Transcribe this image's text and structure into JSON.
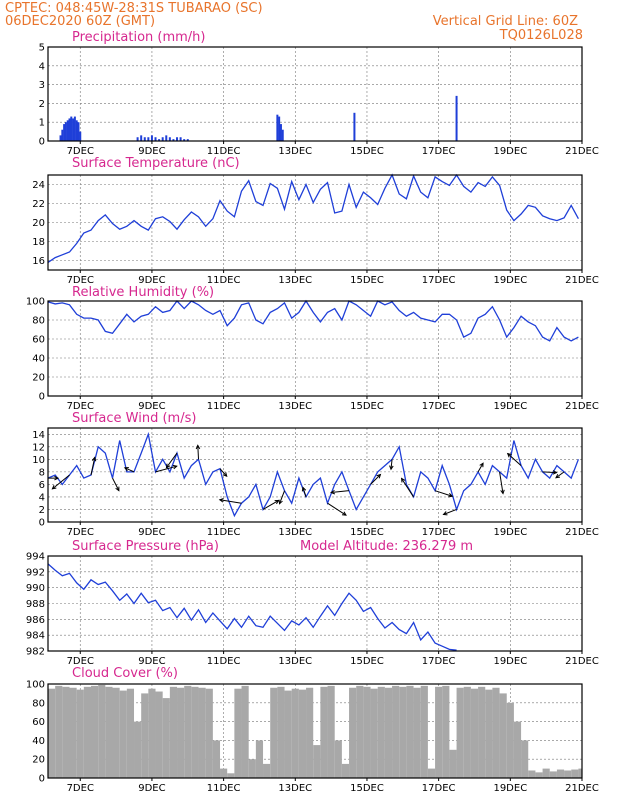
{
  "header": {
    "line1": "CPTEC:   048:45W-28:31S  TUBARAO (SC)",
    "line2": "06DEC2020 60Z (GMT)",
    "grid_note": "Vertical Grid Line: 60Z",
    "code": "TQ0126L028"
  },
  "x_axis": {
    "ticks": [
      {
        "day": 7,
        "label": "7DEC"
      },
      {
        "day": 9,
        "label": "9DEC"
      },
      {
        "day": 11,
        "label": "11DEC"
      },
      {
        "day": 13,
        "label": "13DEC"
      },
      {
        "day": 15,
        "label": "15DEC"
      },
      {
        "day": 17,
        "label": "17DEC"
      },
      {
        "day": 19,
        "label": "19DEC"
      },
      {
        "day": 21,
        "label": "21DEC"
      }
    ],
    "start_day": 6.1,
    "end_day": 21
  },
  "model_altitude": "Model Altitude: 236.279 m",
  "chart_data": [
    {
      "type": "bar",
      "title": "Precipitation (mm/h)",
      "ylim": [
        0,
        5
      ],
      "yticks": [
        0,
        1,
        2,
        3,
        4,
        5
      ],
      "x": [
        6.45,
        6.5,
        6.55,
        6.6,
        6.65,
        6.7,
        6.75,
        6.8,
        6.85,
        6.9,
        6.95,
        7.0,
        8.6,
        8.7,
        8.8,
        8.9,
        9.0,
        9.1,
        9.2,
        9.3,
        9.4,
        9.5,
        9.6,
        9.7,
        9.8,
        9.9,
        10.0,
        12.5,
        12.55,
        12.6,
        12.65,
        14.65,
        17.5
      ],
      "values": [
        0.3,
        0.6,
        0.9,
        1.0,
        1.1,
        1.2,
        1.3,
        1.2,
        1.3,
        1.1,
        1.0,
        0.5,
        0.2,
        0.3,
        0.2,
        0.2,
        0.3,
        0.2,
        0.1,
        0.2,
        0.3,
        0.2,
        0.1,
        0.2,
        0.2,
        0.1,
        0.1,
        1.4,
        1.3,
        0.9,
        0.6,
        1.5,
        2.4
      ]
    },
    {
      "type": "line",
      "title": "Surface Temperature (nC)",
      "ylim": [
        15,
        25
      ],
      "yticks": [
        16,
        18,
        20,
        22,
        24
      ],
      "x": [
        6.1,
        6.3,
        6.5,
        6.7,
        6.9,
        7.1,
        7.3,
        7.5,
        7.7,
        7.9,
        8.1,
        8.3,
        8.5,
        8.7,
        8.9,
        9.1,
        9.3,
        9.5,
        9.7,
        9.9,
        10.1,
        10.3,
        10.5,
        10.7,
        10.9,
        11.1,
        11.3,
        11.5,
        11.7,
        11.9,
        12.1,
        12.3,
        12.5,
        12.7,
        12.9,
        13.1,
        13.3,
        13.5,
        13.7,
        13.9,
        14.1,
        14.3,
        14.5,
        14.7,
        14.9,
        15.1,
        15.3,
        15.5,
        15.7,
        15.9,
        16.1,
        16.3,
        16.5,
        16.7,
        16.9,
        17.1,
        17.3,
        17.5,
        17.7,
        17.9,
        18.1,
        18.3,
        18.5,
        18.7,
        18.9,
        19.1,
        19.3,
        19.5,
        19.7,
        19.9,
        20.1,
        20.3,
        20.5,
        20.7,
        20.9
      ],
      "values": [
        15.8,
        16.3,
        16.6,
        16.9,
        17.8,
        18.9,
        19.2,
        20.2,
        20.8,
        19.9,
        19.3,
        19.6,
        20.2,
        19.6,
        19.2,
        20.4,
        20.6,
        20.1,
        19.3,
        20.3,
        21.1,
        20.6,
        19.6,
        20.4,
        22.3,
        21.2,
        20.6,
        23.3,
        24.4,
        22.2,
        21.8,
        24.1,
        23.6,
        21.4,
        24.3,
        22.4,
        24.0,
        22.1,
        23.5,
        24.2,
        21.0,
        21.2,
        24.0,
        21.6,
        23.2,
        22.6,
        21.9,
        23.6,
        25.0,
        23.0,
        22.5,
        24.9,
        23.2,
        22.6,
        24.8,
        24.3,
        23.9,
        25.0,
        23.8,
        23.2,
        24.2,
        23.8,
        24.8,
        23.9,
        21.3,
        20.2,
        20.9,
        21.8,
        21.6,
        20.7,
        20.4,
        20.2,
        20.5,
        21.8,
        20.4
      ]
    },
    {
      "type": "line",
      "title": "Relative Humidity (%)",
      "ylim": [
        0,
        100
      ],
      "yticks": [
        0,
        20,
        40,
        60,
        80,
        100
      ],
      "x": [
        6.1,
        6.3,
        6.5,
        6.7,
        6.9,
        7.1,
        7.3,
        7.5,
        7.7,
        7.9,
        8.1,
        8.3,
        8.5,
        8.7,
        8.9,
        9.1,
        9.3,
        9.5,
        9.7,
        9.9,
        10.1,
        10.3,
        10.5,
        10.7,
        10.9,
        11.1,
        11.3,
        11.5,
        11.7,
        11.9,
        12.1,
        12.3,
        12.5,
        12.7,
        12.9,
        13.1,
        13.3,
        13.5,
        13.7,
        13.9,
        14.1,
        14.3,
        14.5,
        14.7,
        14.9,
        15.1,
        15.3,
        15.5,
        15.7,
        15.9,
        16.1,
        16.3,
        16.5,
        16.7,
        16.9,
        17.1,
        17.3,
        17.5,
        17.7,
        17.9,
        18.1,
        18.3,
        18.5,
        18.7,
        18.9,
        19.1,
        19.3,
        19.5,
        19.7,
        19.9,
        20.1,
        20.3,
        20.5,
        20.7,
        20.9
      ],
      "values": [
        99,
        97,
        98,
        96,
        86,
        82,
        82,
        80,
        68,
        66,
        76,
        86,
        78,
        84,
        86,
        94,
        88,
        90,
        100,
        92,
        100,
        96,
        90,
        86,
        90,
        74,
        82,
        96,
        98,
        80,
        76,
        88,
        92,
        98,
        82,
        88,
        100,
        88,
        78,
        88,
        92,
        80,
        100,
        96,
        90,
        84,
        100,
        96,
        99,
        90,
        84,
        88,
        82,
        80,
        78,
        86,
        86,
        80,
        62,
        66,
        82,
        86,
        94,
        80,
        62,
        72,
        84,
        78,
        74,
        62,
        58,
        72,
        62,
        58,
        62
      ]
    },
    {
      "type": "line",
      "title": "Surface Wind (m/s)",
      "ylim": [
        0,
        15
      ],
      "yticks": [
        0,
        2,
        4,
        6,
        8,
        10,
        12,
        14
      ],
      "x": [
        6.1,
        6.3,
        6.5,
        6.7,
        6.9,
        7.1,
        7.3,
        7.5,
        7.7,
        7.9,
        8.1,
        8.3,
        8.5,
        8.7,
        8.9,
        9.1,
        9.3,
        9.5,
        9.7,
        9.9,
        10.1,
        10.3,
        10.5,
        10.7,
        10.9,
        11.1,
        11.3,
        11.5,
        11.7,
        11.9,
        12.1,
        12.3,
        12.5,
        12.7,
        12.9,
        13.1,
        13.3,
        13.5,
        13.7,
        13.9,
        14.1,
        14.3,
        14.5,
        14.7,
        14.9,
        15.1,
        15.3,
        15.5,
        15.7,
        15.9,
        16.1,
        16.3,
        16.5,
        16.7,
        16.9,
        17.1,
        17.3,
        17.5,
        17.7,
        17.9,
        18.1,
        18.3,
        18.5,
        18.7,
        18.9,
        19.1,
        19.3,
        19.5,
        19.7,
        19.9,
        20.1,
        20.3,
        20.5,
        20.7,
        20.9
      ],
      "values": [
        7,
        7.5,
        6,
        7.5,
        9,
        7,
        7.5,
        12,
        11,
        7,
        13,
        8,
        8,
        11,
        14,
        8,
        10,
        8,
        11,
        7,
        9,
        10,
        6,
        8,
        8.5,
        4,
        1,
        3,
        4,
        6,
        2,
        4,
        8,
        5,
        3,
        7,
        4,
        6,
        7,
        3,
        6,
        8,
        5,
        2,
        4,
        6,
        8,
        9,
        10,
        12,
        6,
        4,
        8,
        7,
        5,
        9,
        6,
        2,
        5,
        6,
        8,
        6,
        9,
        8,
        7,
        13,
        9,
        7,
        10,
        8,
        7,
        9,
        8,
        7,
        10
      ]
    },
    {
      "type": "line",
      "title": "Surface Pressure (hPa)",
      "ylim": [
        982,
        994
      ],
      "yticks": [
        982,
        984,
        986,
        988,
        990,
        992,
        994
      ],
      "x": [
        6.1,
        6.3,
        6.5,
        6.7,
        6.9,
        7.1,
        7.3,
        7.5,
        7.7,
        7.9,
        8.1,
        8.3,
        8.5,
        8.7,
        8.9,
        9.1,
        9.3,
        9.5,
        9.7,
        9.9,
        10.1,
        10.3,
        10.5,
        10.7,
        10.9,
        11.1,
        11.3,
        11.5,
        11.7,
        11.9,
        12.1,
        12.3,
        12.5,
        12.7,
        12.9,
        13.1,
        13.3,
        13.5,
        13.7,
        13.9,
        14.1,
        14.3,
        14.5,
        14.7,
        14.9,
        15.1,
        15.3,
        15.5,
        15.7,
        15.9,
        16.1,
        16.3,
        16.5,
        16.7,
        16.9,
        17.1,
        17.3,
        17.5
      ],
      "values": [
        993,
        992.2,
        991.5,
        991.8,
        990.6,
        989.8,
        991,
        990.4,
        990.7,
        989.6,
        988.4,
        989.2,
        988,
        989.3,
        988.1,
        988.4,
        987.1,
        987.5,
        986.2,
        987.4,
        985.9,
        987.2,
        985.6,
        986.8,
        985.8,
        984.8,
        986.1,
        985,
        986.4,
        985.2,
        985,
        986.4,
        985.5,
        984.6,
        985.8,
        985.3,
        986.2,
        985,
        986.4,
        987.7,
        986.5,
        988,
        989.3,
        988.4,
        987,
        987.5,
        986.1,
        984.9,
        985.6,
        984.7,
        984.2,
        985.6,
        983.4,
        984.4,
        983,
        982.6,
        982.2,
        982.1
      ]
    },
    {
      "type": "area",
      "title": "Cloud Cover (%)",
      "ylim": [
        0,
        100
      ],
      "yticks": [
        0,
        20,
        40,
        60,
        80,
        100
      ],
      "x": [
        6.1,
        6.3,
        6.5,
        6.7,
        6.9,
        7.1,
        7.3,
        7.5,
        7.7,
        7.9,
        8.1,
        8.3,
        8.5,
        8.7,
        8.9,
        9.1,
        9.3,
        9.5,
        9.7,
        9.9,
        10.1,
        10.3,
        10.5,
        10.7,
        10.9,
        11.1,
        11.3,
        11.5,
        11.7,
        11.9,
        12.1,
        12.3,
        12.5,
        12.7,
        12.9,
        13.1,
        13.3,
        13.5,
        13.7,
        13.9,
        14.1,
        14.3,
        14.5,
        14.7,
        14.9,
        15.1,
        15.3,
        15.5,
        15.7,
        15.9,
        16.1,
        16.3,
        16.5,
        16.7,
        16.9,
        17.1,
        17.3,
        17.5,
        17.7,
        17.9,
        18.1,
        18.3,
        18.5,
        18.7,
        18.9,
        19.1,
        19.3,
        19.5,
        19.7,
        19.9,
        20.1,
        20.3,
        20.5,
        20.7,
        20.9
      ],
      "values": [
        95,
        98,
        97,
        96,
        94,
        97,
        98,
        99,
        97,
        96,
        93,
        95,
        60,
        90,
        95,
        92,
        85,
        97,
        96,
        98,
        97,
        96,
        95,
        40,
        10,
        5,
        95,
        98,
        20,
        40,
        15,
        96,
        97,
        93,
        95,
        94,
        96,
        35,
        97,
        98,
        40,
        15,
        96,
        98,
        97,
        95,
        97,
        96,
        98,
        97,
        98,
        96,
        98,
        10,
        97,
        98,
        30,
        96,
        97,
        95,
        97,
        94,
        96,
        90,
        80,
        60,
        40,
        8,
        6,
        10,
        7,
        9,
        8,
        9,
        10
      ]
    }
  ]
}
